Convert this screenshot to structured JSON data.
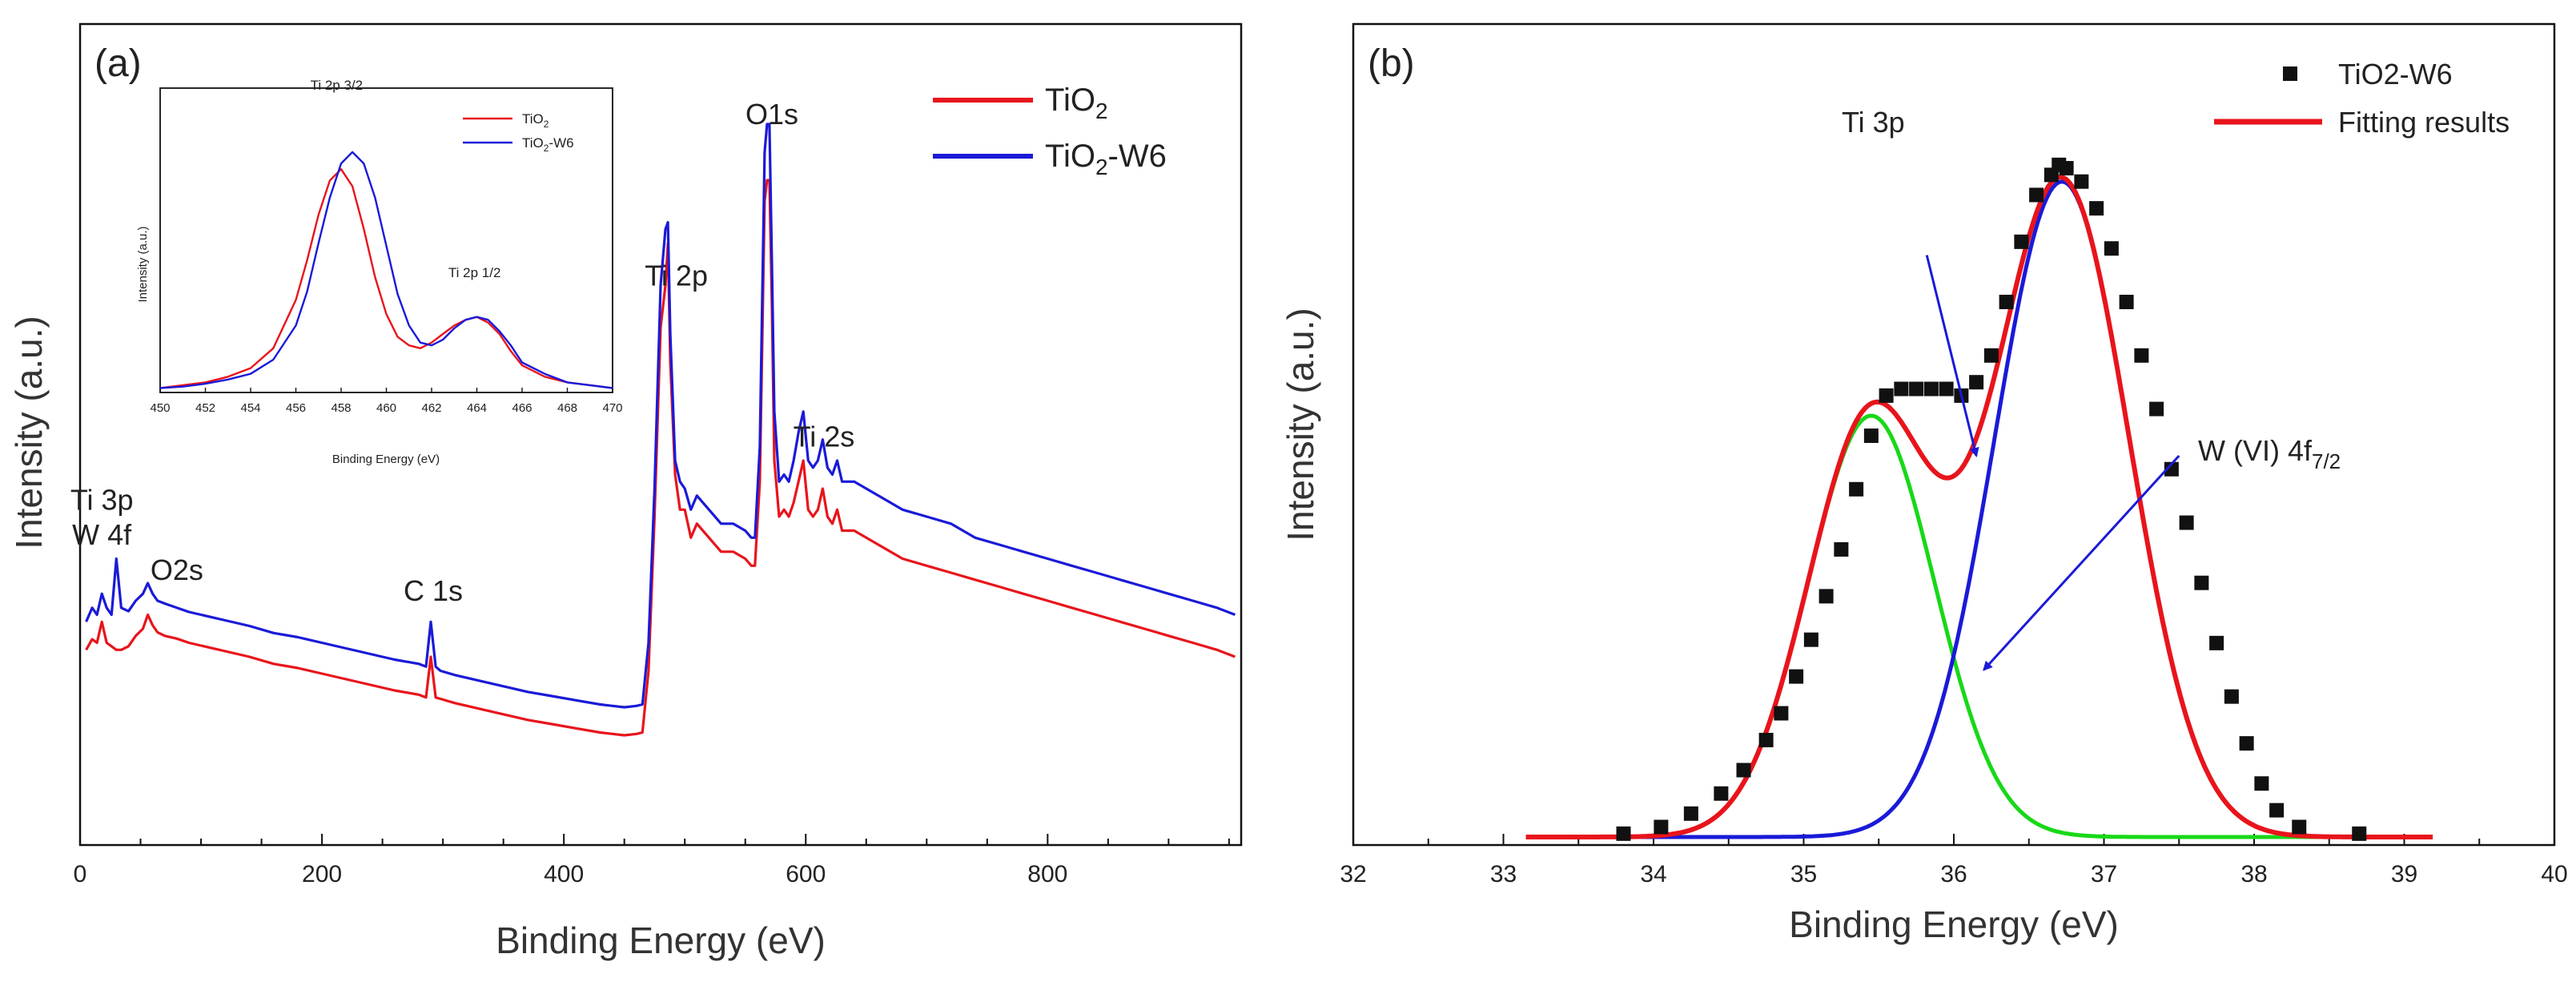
{
  "chart_data": [
    {
      "panel_label": "(a)",
      "type": "line",
      "xlabel": "Binding Energy (eV)",
      "ylabel": "Intensity (a.u.)",
      "xlim": [
        0,
        960
      ],
      "ylim": [
        0,
        100
      ],
      "x_ticks": [
        0,
        200,
        400,
        600,
        800
      ],
      "y_ticks_labeled": false,
      "grid": false,
      "legend_position": "top-right",
      "colors": {
        "TiO2": "#e8141b",
        "TiO2-W6": "#1a1ad8"
      },
      "legend": [
        {
          "label": "TiO",
          "sub": "2",
          "suffix": "",
          "color": "#e8141b"
        },
        {
          "label": "TiO",
          "sub": "2",
          "suffix": "-W6",
          "color": "#1a1ad8"
        }
      ],
      "annotations": [
        {
          "text": "Ti 3p",
          "x": 18,
          "y": 41
        },
        {
          "text": "W 4f",
          "x": 18,
          "y": 36
        },
        {
          "text": "O2s",
          "x": 80,
          "y": 31
        },
        {
          "text": "C 1s",
          "x": 292,
          "y": 28
        },
        {
          "text": "Ti 2p",
          "x": 493,
          "y": 73
        },
        {
          "text": "O1s",
          "x": 572,
          "y": 96
        },
        {
          "text": "Ti 2s",
          "x": 615,
          "y": 50
        }
      ],
      "series": [
        {
          "name": "TiO2",
          "x": [
            5,
            10,
            14,
            18,
            22,
            26,
            30,
            34,
            40,
            46,
            52,
            56,
            60,
            64,
            70,
            80,
            90,
            100,
            120,
            140,
            160,
            180,
            200,
            220,
            240,
            260,
            280,
            286,
            290,
            294,
            298,
            310,
            330,
            350,
            370,
            390,
            410,
            430,
            450,
            460,
            465,
            470,
            475,
            480,
            484,
            486,
            488,
            492,
            496,
            500,
            505,
            510,
            520,
            530,
            540,
            550,
            555,
            558,
            562,
            566,
            568,
            570,
            572,
            574,
            578,
            582,
            586,
            590,
            594,
            598,
            602,
            606,
            610,
            614,
            618,
            622,
            626,
            630,
            640,
            650,
            660,
            670,
            680,
            700,
            720,
            740,
            760,
            780,
            800,
            820,
            840,
            860,
            880,
            900,
            920,
            940,
            955
          ],
          "values": [
            21,
            22.5,
            22,
            25,
            22,
            21.5,
            21,
            21,
            21.5,
            23,
            24,
            26,
            24.5,
            23.5,
            23,
            22.6,
            22,
            21.6,
            20.8,
            20,
            19,
            18.4,
            17.6,
            16.8,
            16,
            15.2,
            14.6,
            14.2,
            20,
            14.2,
            14,
            13.4,
            12.6,
            11.8,
            11,
            10.4,
            9.8,
            9.2,
            8.8,
            9,
            9.2,
            18,
            40,
            67,
            73,
            79,
            62,
            46,
            41,
            41,
            37,
            39,
            37,
            35,
            35,
            34,
            33,
            33,
            45,
            85,
            88,
            88,
            70,
            48,
            40,
            41,
            40,
            42,
            45,
            48,
            41,
            40,
            41,
            44,
            40,
            39,
            41,
            38,
            38,
            37,
            36,
            35,
            34,
            33,
            32,
            31,
            30,
            29,
            28,
            27,
            26,
            25,
            24,
            23,
            22,
            21,
            20
          ]
        },
        {
          "name": "TiO2-W6",
          "x": [
            5,
            10,
            14,
            18,
            22,
            26,
            30,
            34,
            40,
            46,
            52,
            56,
            60,
            64,
            70,
            80,
            90,
            100,
            120,
            140,
            160,
            180,
            200,
            220,
            240,
            260,
            280,
            286,
            290,
            294,
            298,
            310,
            330,
            350,
            370,
            390,
            410,
            430,
            450,
            460,
            465,
            470,
            475,
            480,
            484,
            486,
            488,
            492,
            496,
            500,
            505,
            510,
            520,
            530,
            540,
            550,
            555,
            558,
            562,
            566,
            568,
            570,
            572,
            574,
            578,
            582,
            586,
            590,
            594,
            598,
            602,
            606,
            610,
            614,
            618,
            622,
            626,
            630,
            640,
            650,
            660,
            670,
            680,
            700,
            720,
            740,
            760,
            780,
            800,
            820,
            840,
            860,
            880,
            900,
            920,
            940,
            955
          ],
          "values": [
            25,
            27,
            26,
            29,
            27,
            26,
            34,
            27,
            26.5,
            28,
            29,
            30.5,
            29,
            28,
            27.6,
            27,
            26.4,
            26,
            25.2,
            24.4,
            23.4,
            22.8,
            22,
            21.2,
            20.4,
            19.6,
            19,
            18.6,
            25,
            18.6,
            18,
            17.4,
            16.6,
            15.8,
            15,
            14.4,
            13.8,
            13.2,
            12.8,
            13,
            13.2,
            22,
            44,
            73,
            81,
            82,
            66,
            48,
            45,
            44,
            41,
            43,
            41,
            39,
            39,
            38,
            37,
            37,
            50,
            92,
            96,
            96,
            76,
            55,
            45,
            46,
            45,
            48,
            52,
            55,
            48,
            47,
            48,
            51,
            47,
            46,
            48,
            45,
            45,
            44,
            43,
            42,
            41,
            40,
            39,
            37,
            36,
            35,
            34,
            33,
            32,
            31,
            30,
            29,
            28,
            27,
            26
          ]
        }
      ],
      "inset": {
        "xlabel": "Binding Energy (eV)",
        "ylabel": "Intensity (a.u.)",
        "xlim": [
          450,
          470
        ],
        "ylim": [
          0,
          100
        ],
        "x_ticks": [
          450,
          452,
          454,
          456,
          458,
          460,
          462,
          464,
          466,
          468,
          470
        ],
        "annotations": [
          {
            "text": "Ti 2p 3/2",
            "x": 457.8,
            "y": 106
          },
          {
            "text": "Ti 2p 1/2",
            "x": 463.9,
            "y": 40
          }
        ],
        "legend": [
          {
            "label": "TiO",
            "sub": "2",
            "suffix": "",
            "color": "#e8141b"
          },
          {
            "label": "TiO",
            "sub": "2",
            "suffix": "-W6",
            "color": "#1a1ad8"
          }
        ],
        "series": [
          {
            "name": "TiO2",
            "x": [
              450,
              451,
              452,
              453,
              454,
              455,
              456,
              456.5,
              457,
              457.5,
              458,
              458.5,
              459,
              459.5,
              460,
              460.5,
              461,
              461.5,
              462,
              462.5,
              463,
              463.5,
              464,
              464.5,
              465,
              465.5,
              466,
              467,
              468,
              469,
              470
            ],
            "values": [
              1,
              2,
              3,
              5,
              8,
              15,
              32,
              46,
              62,
              74,
              78,
              72,
              57,
              40,
              27,
              19,
              16,
              15,
              17,
              20,
              23,
              25,
              26,
              24,
              20,
              14,
              9,
              5,
              3,
              2,
              1
            ]
          },
          {
            "name": "TiO2-W6",
            "x": [
              450,
              451,
              452,
              453,
              454,
              455,
              456,
              456.5,
              457,
              457.5,
              458,
              458.5,
              459,
              459.5,
              460,
              460.5,
              461,
              461.5,
              462,
              462.5,
              463,
              463.5,
              464,
              464.5,
              465,
              465.5,
              466,
              467,
              468,
              469,
              470
            ],
            "values": [
              1,
              1.5,
              2.5,
              4,
              6,
              11,
              23,
              35,
              52,
              68,
              80,
              84,
              80,
              68,
              51,
              34,
              23,
              17,
              16,
              18,
              22,
              25,
              26,
              25,
              21,
              16,
              10,
              6,
              3,
              2,
              1
            ]
          }
        ]
      }
    },
    {
      "panel_label": "(b)",
      "type": "line",
      "xlabel": "Binding Energy (eV)",
      "ylabel": "Intensity (a.u.)",
      "xlim": [
        32,
        40
      ],
      "ylim": [
        0,
        105
      ],
      "x_ticks": [
        32,
        33,
        34,
        35,
        36,
        37,
        38,
        39,
        40
      ],
      "y_ticks_labeled": false,
      "grid": false,
      "legend_position": "top-right",
      "colors": {
        "data": "#111111",
        "fit": "#e8141b",
        "ti3p": "#18d818",
        "w4f": "#1a1ad8"
      },
      "legend": [
        {
          "label": "TiO2-W6",
          "marker": "square",
          "color": "#111111"
        },
        {
          "label": "Fitting results",
          "marker": "line",
          "color": "#e8141b"
        }
      ],
      "annotations": [
        {
          "text": "Ti 3p",
          "x": 35.6,
          "y": 93
        },
        {
          "text": "W (VI) 4f",
          "sub": "7/2",
          "x": 38.2,
          "y": 58
        }
      ],
      "arrows": [
        {
          "from": [
            35.82,
            87
          ],
          "to": [
            36.15,
            57
          ]
        },
        {
          "from": [
            37.5,
            57
          ],
          "to": [
            36.2,
            25
          ]
        }
      ],
      "scatter": {
        "name": "TiO2-W6",
        "x": [
          33.8,
          34.05,
          34.25,
          34.45,
          34.6,
          34.75,
          34.85,
          34.95,
          35.05,
          35.15,
          35.25,
          35.35,
          35.45,
          35.55,
          35.65,
          35.75,
          35.85,
          35.95,
          36.05,
          36.15,
          36.25,
          36.35,
          36.45,
          36.55,
          36.65,
          36.7,
          36.75,
          36.85,
          36.95,
          37.05,
          37.15,
          37.25,
          37.35,
          37.45,
          37.55,
          37.65,
          37.75,
          37.85,
          37.95,
          38.05,
          38.15,
          38.3,
          38.7
        ],
        "values": [
          0.5,
          1.5,
          3.5,
          6.5,
          10,
          14.5,
          18.5,
          24,
          29.5,
          36,
          43,
          52,
          60,
          66,
          67,
          67,
          67,
          67,
          66,
          68,
          72,
          80,
          89,
          96,
          99,
          100.5,
          100,
          98,
          94,
          88,
          80,
          72,
          64,
          55,
          47,
          38,
          29,
          21,
          14,
          8,
          4,
          1.5,
          0.5
        ]
      },
      "fit_curves": [
        {
          "name": "Fitting results",
          "mu1": 35.45,
          "sigma1": 0.42,
          "amp1": 63,
          "mu2": 36.72,
          "sigma2": 0.45,
          "amp2": 98
        },
        {
          "name": "Ti 3p",
          "mu": 35.45,
          "sigma": 0.42,
          "amp": 63
        },
        {
          "name": "W (VI) 4f7/2",
          "mu": 36.72,
          "sigma": 0.45,
          "amp": 98
        }
      ]
    }
  ]
}
